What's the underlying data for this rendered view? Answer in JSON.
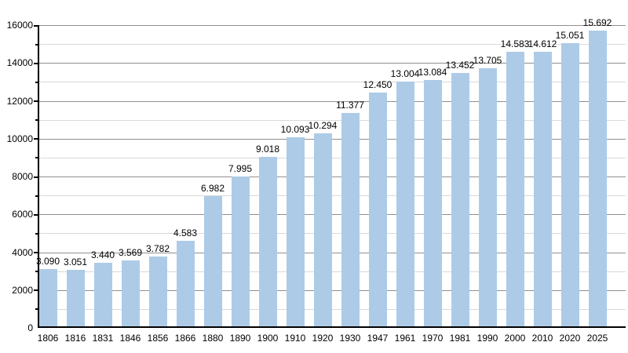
{
  "chart_data": {
    "type": "bar",
    "title": "",
    "xlabel": "",
    "ylabel": "",
    "categories": [
      "1806",
      "1816",
      "1831",
      "1846",
      "1856",
      "1866",
      "1880",
      "1890",
      "1900",
      "1910",
      "1920",
      "1930",
      "1947",
      "1961",
      "1970",
      "1981",
      "1990",
      "2000",
      "2010",
      "2020",
      "2025"
    ],
    "values": [
      3090,
      3051,
      3440,
      3569,
      3782,
      4583,
      6982,
      7995,
      9018,
      10093,
      10294,
      11377,
      12450,
      13004,
      13084,
      13452,
      13705,
      14583,
      14612,
      15051,
      15692
    ],
    "value_labels": [
      "3.090",
      "3.051",
      "3.440",
      "3.569",
      "3.782",
      "4.583",
      "6.982",
      "7.995",
      "9.018",
      "10.093",
      "10.294",
      "11.377",
      "12.450",
      "13.004",
      "13.084",
      "13.452",
      "13.705",
      "14.583",
      "14.612",
      "15.051",
      "15.692"
    ],
    "ylim": [
      0,
      16000
    ],
    "y_major_ticks": [
      0,
      2000,
      4000,
      6000,
      8000,
      10000,
      12000,
      14000,
      16000
    ],
    "y_minor_step": 1000,
    "grid": true,
    "legend_position": "none",
    "colors": {
      "bar_fill": "#adcbe7",
      "major_grid": "#8f8f8f",
      "minor_grid": "#d9d9d9",
      "axis": "#000000",
      "text": "#000000"
    }
  }
}
